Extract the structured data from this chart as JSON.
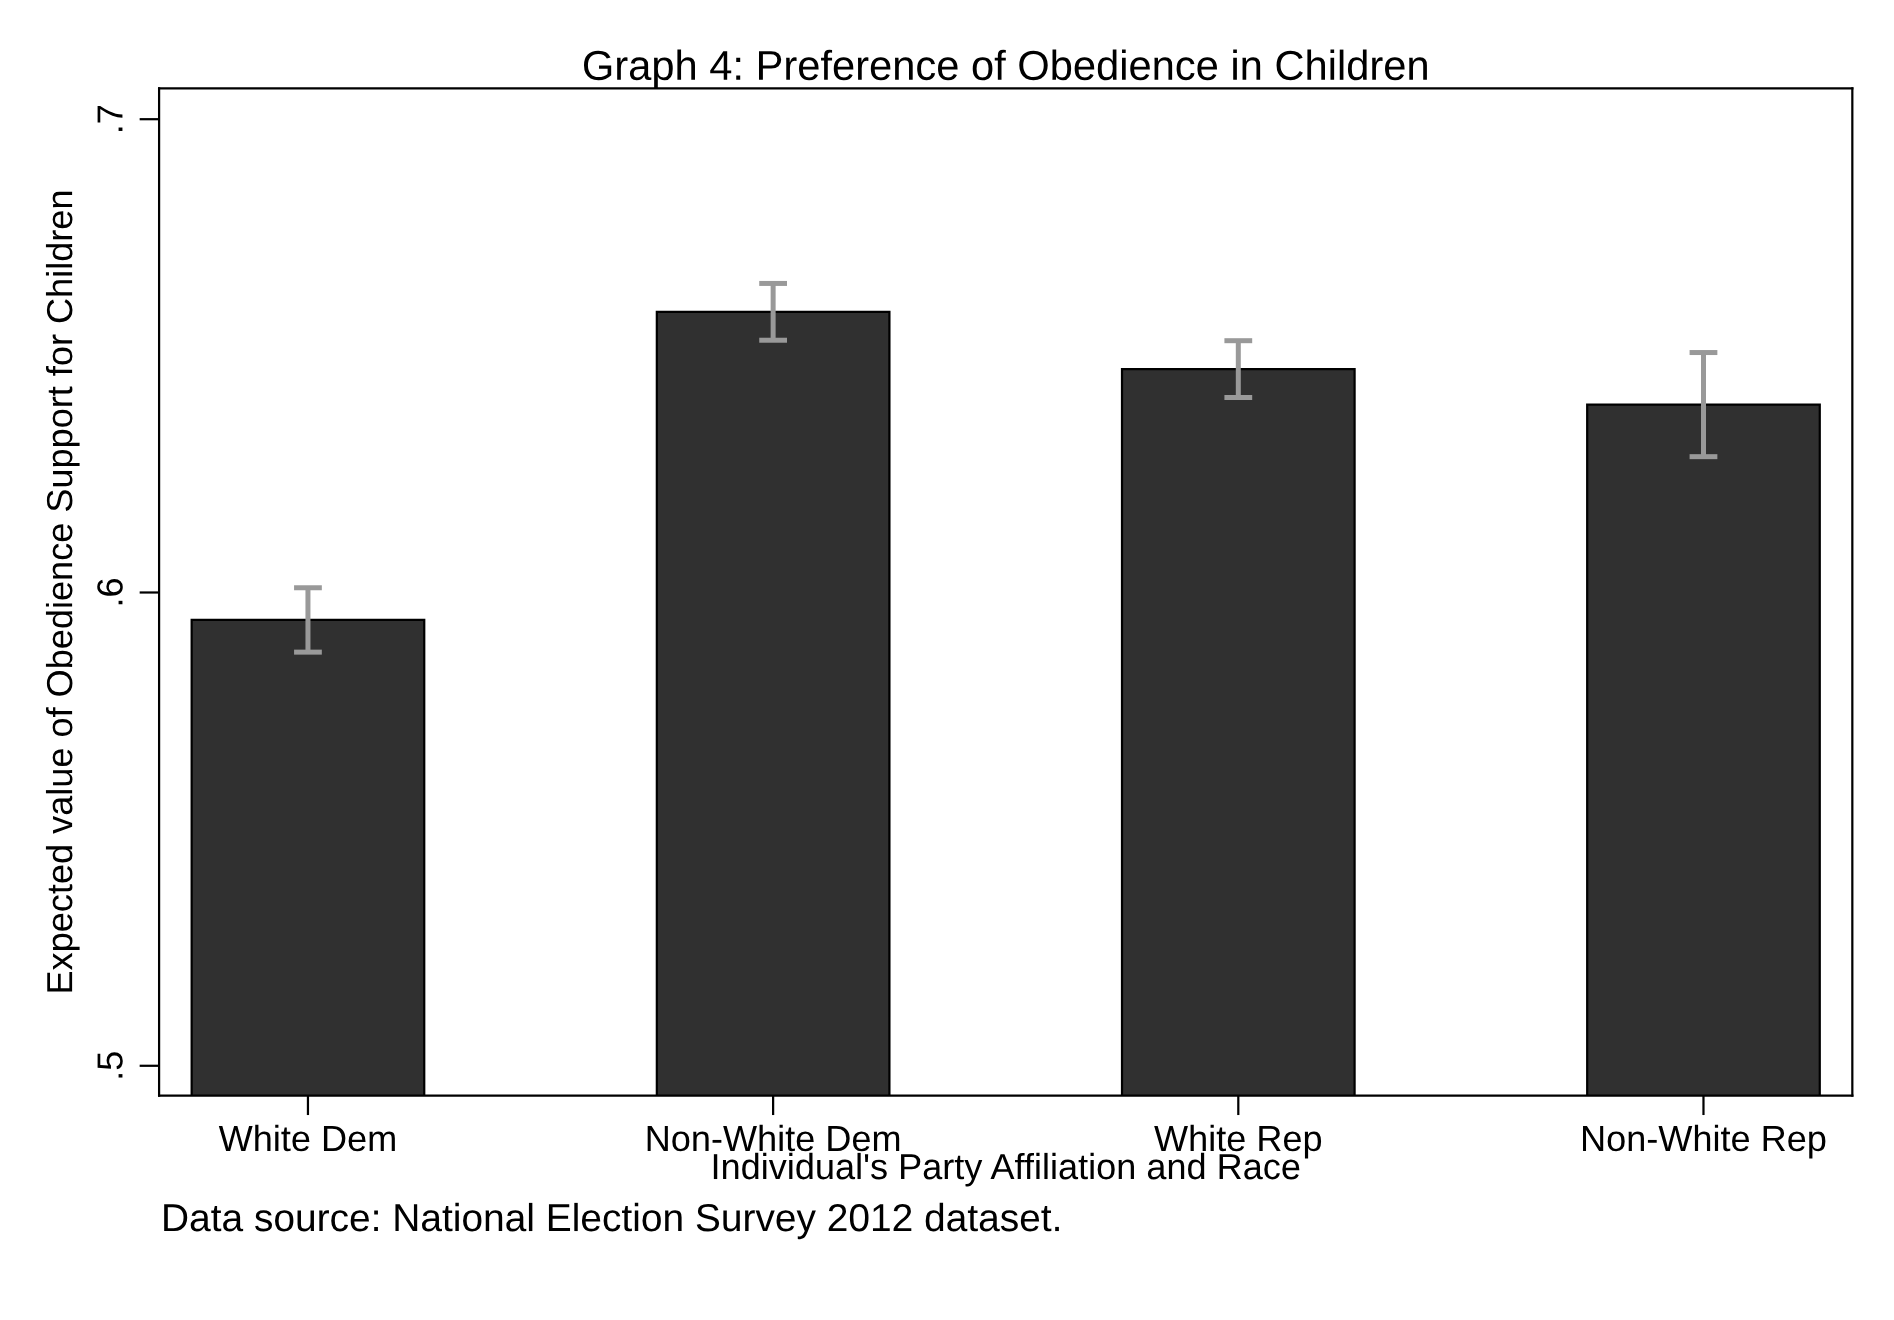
{
  "chart_data": {
    "type": "bar",
    "title": "Graph 4: Preference of Obedience in Children",
    "xlabel": "Individual's Party Affiliation and Race",
    "ylabel": "Expected value of Obedience Support for Children",
    "categories": [
      "White Dem",
      "Non-White Dem",
      "White Rep",
      "Non-White Rep"
    ],
    "series": [
      {
        "color": "#303030",
        "values": [
          0.5942,
          0.6593,
          0.6472,
          0.6397
        ],
        "errors": [
          0.0068,
          0.006,
          0.006,
          0.011
        ]
      }
    ],
    "ylim": [
      0.4937,
      0.7065
    ],
    "yticks": [
      {
        "value": 0.5,
        "label": ".5"
      },
      {
        "value": 0.6,
        "label": ".6"
      },
      {
        "value": 0.7,
        "label": ".7"
      }
    ],
    "grid": false,
    "legend": false,
    "annotations": [
      "Data source: National Election Survey 2012 dataset."
    ]
  }
}
